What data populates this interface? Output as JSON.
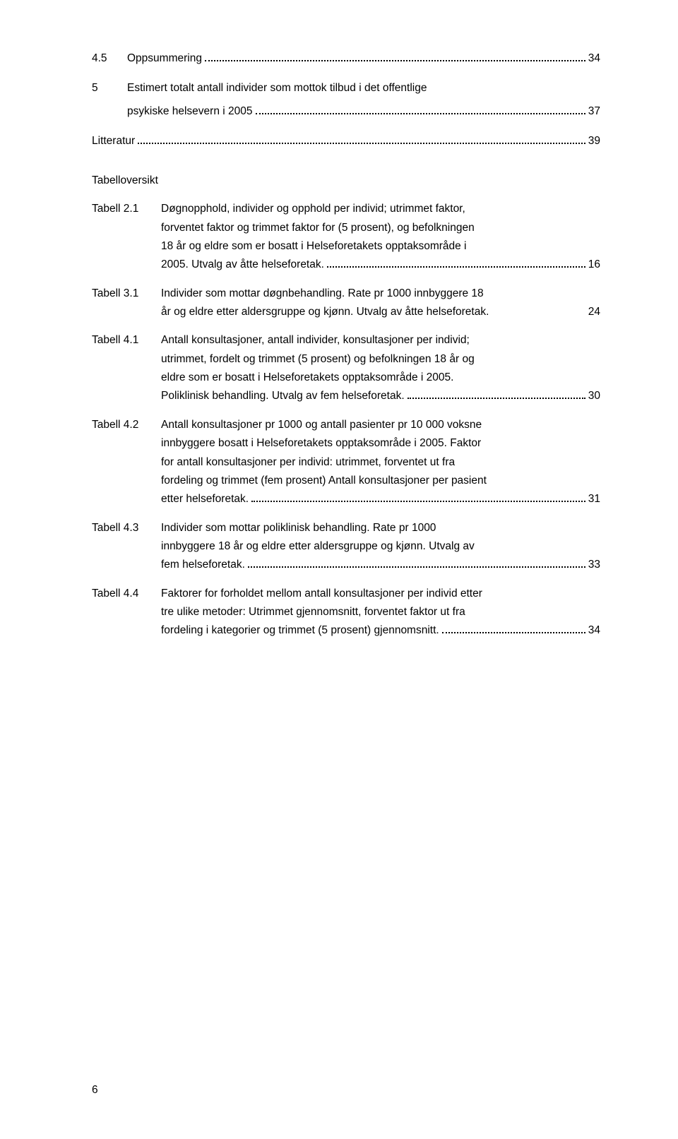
{
  "toc": {
    "items": [
      {
        "num": "4.5",
        "text": "Oppsummering",
        "page": "34",
        "indent": false
      },
      {
        "num": "5",
        "text": "Estimert totalt antall individer som mottok  tilbud i det offentlige",
        "cont": "psykiske helsevern i 2005",
        "page": "37",
        "indent": false
      },
      {
        "num": "",
        "text": "Litteratur",
        "page": "39",
        "indent": false
      }
    ]
  },
  "tab_heading": "Tabelloversikt",
  "tables": [
    {
      "label": "Tabell 2.1",
      "lines": [
        "Døgnopphold, individer og opphold per individ; utrimmet faktor,",
        "forventet faktor og trimmet faktor for (5 prosent), og befolkningen",
        "18 år og eldre som er bosatt i Helseforetakets opptaksområde i"
      ],
      "last": "2005. Utvalg av åtte helseforetak.",
      "page": "16"
    },
    {
      "label": "Tabell 3.1",
      "lines": [
        "Individer som mottar døgnbehandling. Rate pr 1000 innbyggere 18"
      ],
      "last": "år og eldre etter aldersgruppe og kjønn. Utvalg av åtte helseforetak.",
      "page": "24",
      "nodots": true
    },
    {
      "label": "Tabell 4.1",
      "lines": [
        "Antall konsultasjoner, antall individer, konsultasjoner per individ;",
        "utrimmet, fordelt og trimmet (5 prosent) og befolkningen 18 år og",
        "eldre som er bosatt i Helseforetakets opptaksområde i 2005."
      ],
      "last": "Poliklinisk behandling. Utvalg av fem helseforetak.",
      "page": "30"
    },
    {
      "label": "Tabell 4.2",
      "lines": [
        "Antall konsultasjoner pr 1000 og antall pasienter pr 10 000 voksne",
        "innbyggere bosatt i Helseforetakets opptaksområde i 2005. Faktor",
        "for antall konsultasjoner per individ: utrimmet, forventet ut fra",
        "fordeling og trimmet (fem prosent) Antall konsultasjoner per pasient"
      ],
      "last": "etter helseforetak.",
      "page": "31"
    },
    {
      "label": "Tabell 4.3",
      "lines": [
        "Individer som mottar poliklinisk behandling. Rate pr 1000",
        "innbyggere 18 år og eldre etter aldersgruppe og kjønn. Utvalg av"
      ],
      "last": "fem helseforetak.",
      "page": "33"
    },
    {
      "label": "Tabell 4.4",
      "lines": [
        "Faktorer for forholdet mellom antall konsultasjoner per individ etter",
        "tre ulike metoder: Utrimmet gjennomsnitt, forventet faktor ut fra"
      ],
      "last": "fordeling i kategorier og trimmet (5 prosent) gjennomsnitt.",
      "page": "34"
    }
  ],
  "page_number": "6"
}
